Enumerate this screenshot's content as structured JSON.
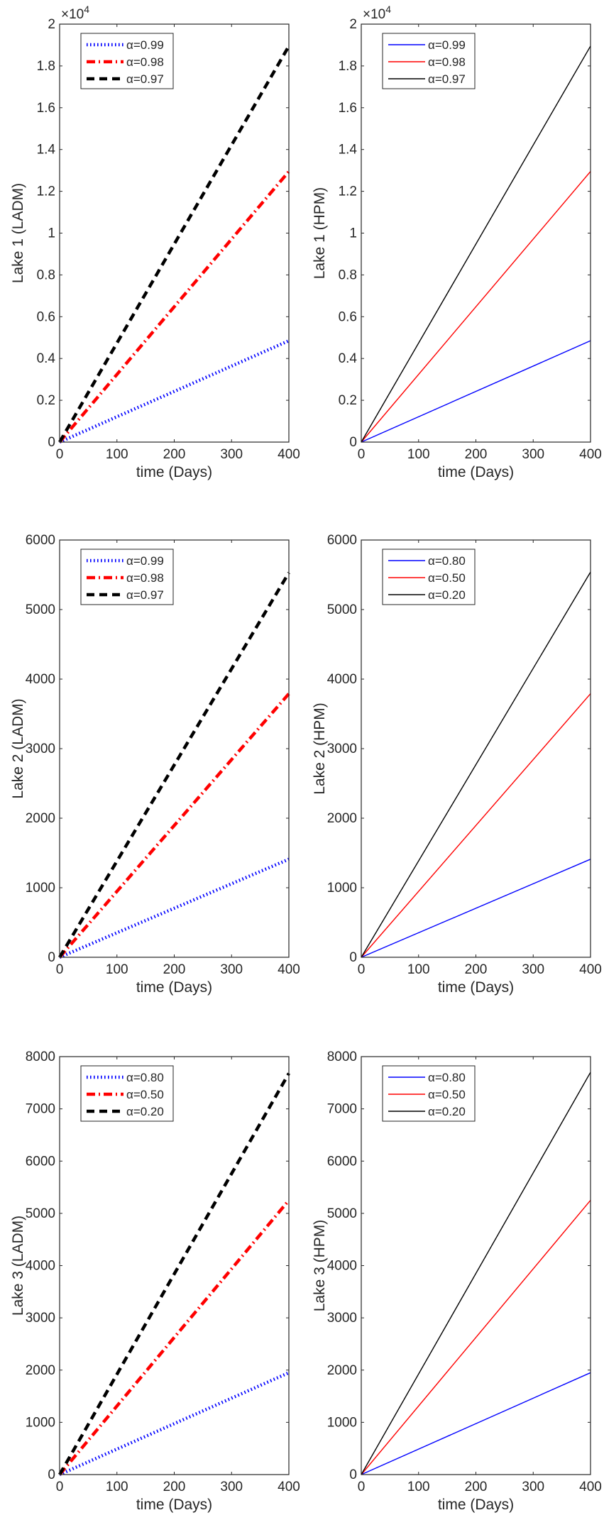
{
  "chart_data": [
    {
      "type": "line",
      "xlabel": "time (Days)",
      "ylabel": "Lake 1 (LADM)",
      "xlim": [
        0,
        400
      ],
      "ylim": [
        0,
        20000
      ],
      "xticks": [
        0,
        100,
        200,
        300,
        400
      ],
      "xtick_labels": [
        "0",
        "100",
        "200",
        "300",
        "400"
      ],
      "yticks": [
        0,
        2000,
        4000,
        6000,
        8000,
        10000,
        12000,
        14000,
        16000,
        18000,
        20000
      ],
      "ytick_labels": [
        "0",
        "0.2",
        "0.4",
        "0.6",
        "0.8",
        "1",
        "1.2",
        "1.4",
        "1.6",
        "1.8",
        "2"
      ],
      "exponent": {
        "base": "×10",
        "power": "4"
      },
      "legend_position": "top-left",
      "x": [
        0,
        400
      ],
      "series": [
        {
          "name": "α=0.99",
          "color": "#0000ff",
          "style": "dotted",
          "values": [
            0,
            4850
          ]
        },
        {
          "name": "α=0.98",
          "color": "#ff0000",
          "style": "dashdot",
          "values": [
            0,
            12950
          ]
        },
        {
          "name": "α=0.97",
          "color": "#000000",
          "style": "dashed",
          "values": [
            0,
            18950
          ]
        }
      ]
    },
    {
      "type": "line",
      "xlabel": "time (Days)",
      "ylabel": "Lake 1 (HPM)",
      "xlim": [
        0,
        400
      ],
      "ylim": [
        0,
        20000
      ],
      "xticks": [
        0,
        100,
        200,
        300,
        400
      ],
      "xtick_labels": [
        "0",
        "100",
        "200",
        "300",
        "400"
      ],
      "yticks": [
        0,
        2000,
        4000,
        6000,
        8000,
        10000,
        12000,
        14000,
        16000,
        18000,
        20000
      ],
      "ytick_labels": [
        "0",
        "0.2",
        "0.4",
        "0.6",
        "0.8",
        "1",
        "1.2",
        "1.4",
        "1.6",
        "1.8",
        "2"
      ],
      "exponent": {
        "base": "×10",
        "power": "4"
      },
      "legend_position": "top-left",
      "x": [
        0,
        400
      ],
      "series": [
        {
          "name": "α=0.99",
          "color": "#0000ff",
          "style": "solid",
          "values": [
            0,
            4850
          ]
        },
        {
          "name": "α=0.98",
          "color": "#ff0000",
          "style": "solid",
          "values": [
            0,
            12950
          ]
        },
        {
          "name": "α=0.97",
          "color": "#000000",
          "style": "solid",
          "values": [
            0,
            18950
          ]
        }
      ]
    },
    {
      "type": "line",
      "xlabel": "time (Days)",
      "ylabel": "Lake 2 (LADM)",
      "xlim": [
        0,
        400
      ],
      "ylim": [
        0,
        6000
      ],
      "xticks": [
        0,
        100,
        200,
        300,
        400
      ],
      "xtick_labels": [
        "0",
        "100",
        "200",
        "300",
        "400"
      ],
      "yticks": [
        0,
        1000,
        2000,
        3000,
        4000,
        5000,
        6000
      ],
      "ytick_labels": [
        "0",
        "1000",
        "2000",
        "3000",
        "4000",
        "5000",
        "6000"
      ],
      "legend_position": "top-left",
      "x": [
        0,
        400
      ],
      "series": [
        {
          "name": "α=0.99",
          "color": "#0000ff",
          "style": "dotted",
          "values": [
            0,
            1410
          ]
        },
        {
          "name": "α=0.98",
          "color": "#ff0000",
          "style": "dashdot",
          "values": [
            0,
            3790
          ]
        },
        {
          "name": "α=0.97",
          "color": "#000000",
          "style": "dashed",
          "values": [
            0,
            5530
          ]
        }
      ]
    },
    {
      "type": "line",
      "xlabel": "time (Days)",
      "ylabel": "Lake 2 (HPM)",
      "xlim": [
        0,
        400
      ],
      "ylim": [
        0,
        6000
      ],
      "xticks": [
        0,
        100,
        200,
        300,
        400
      ],
      "xtick_labels": [
        "0",
        "100",
        "200",
        "300",
        "400"
      ],
      "yticks": [
        0,
        1000,
        2000,
        3000,
        4000,
        5000,
        6000
      ],
      "ytick_labels": [
        "0",
        "1000",
        "2000",
        "3000",
        "4000",
        "5000",
        "6000"
      ],
      "legend_position": "top-left",
      "x": [
        0,
        400
      ],
      "series": [
        {
          "name": "α=0.80",
          "color": "#0000ff",
          "style": "solid",
          "values": [
            0,
            1410
          ]
        },
        {
          "name": "α=0.50",
          "color": "#ff0000",
          "style": "solid",
          "values": [
            0,
            3790
          ]
        },
        {
          "name": "α=0.20",
          "color": "#000000",
          "style": "solid",
          "values": [
            0,
            5540
          ]
        }
      ]
    },
    {
      "type": "line",
      "xlabel": "time (Days)",
      "ylabel": "Lake 3 (LADM)",
      "xlim": [
        0,
        400
      ],
      "ylim": [
        0,
        8000
      ],
      "xticks": [
        0,
        100,
        200,
        300,
        400
      ],
      "xtick_labels": [
        "0",
        "100",
        "200",
        "300",
        "400"
      ],
      "yticks": [
        0,
        1000,
        2000,
        3000,
        4000,
        5000,
        6000,
        7000,
        8000
      ],
      "ytick_labels": [
        "0",
        "1000",
        "2000",
        "3000",
        "4000",
        "5000",
        "6000",
        "7000",
        "8000"
      ],
      "legend_position": "top-left",
      "x": [
        0,
        400
      ],
      "series": [
        {
          "name": "α=0.80",
          "color": "#0000ff",
          "style": "dotted",
          "values": [
            0,
            1950
          ]
        },
        {
          "name": "α=0.50",
          "color": "#ff0000",
          "style": "dashdot",
          "values": [
            0,
            5250
          ]
        },
        {
          "name": "α=0.20",
          "color": "#000000",
          "style": "dashed",
          "values": [
            0,
            7680
          ]
        }
      ]
    },
    {
      "type": "line",
      "xlabel": "time (Days)",
      "ylabel": "Lake 3 (HPM)",
      "xlim": [
        0,
        400
      ],
      "ylim": [
        0,
        8000
      ],
      "xticks": [
        0,
        100,
        200,
        300,
        400
      ],
      "xtick_labels": [
        "0",
        "100",
        "200",
        "300",
        "400"
      ],
      "yticks": [
        0,
        1000,
        2000,
        3000,
        4000,
        5000,
        6000,
        7000,
        8000
      ],
      "ytick_labels": [
        "0",
        "1000",
        "2000",
        "3000",
        "4000",
        "5000",
        "6000",
        "7000",
        "8000"
      ],
      "legend_position": "top-left",
      "x": [
        0,
        400
      ],
      "series": [
        {
          "name": "α=0.80",
          "color": "#0000ff",
          "style": "solid",
          "values": [
            0,
            1950
          ]
        },
        {
          "name": "α=0.50",
          "color": "#ff0000",
          "style": "solid",
          "values": [
            0,
            5250
          ]
        },
        {
          "name": "α=0.20",
          "color": "#000000",
          "style": "solid",
          "values": [
            0,
            7700
          ]
        }
      ]
    }
  ]
}
